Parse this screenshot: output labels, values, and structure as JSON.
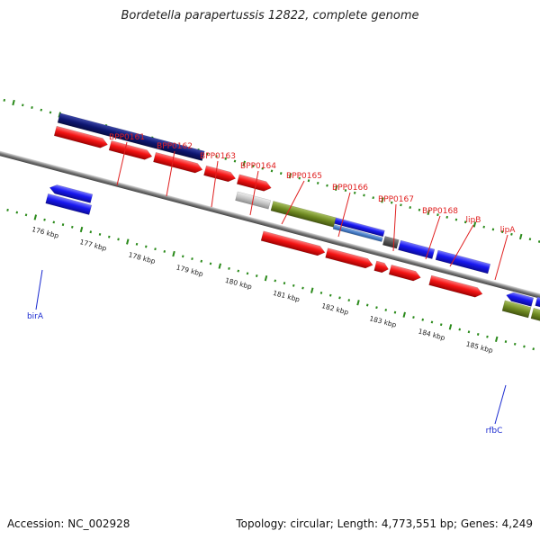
{
  "title": "Bordetella parapertussis 12822, complete genome",
  "footer": {
    "accession": "Accession: NC_002928",
    "summary": "Topology: circular; Length: 4,773,551 bp; Genes: 4,249"
  },
  "colors": {
    "backbone": "#7a7a7a",
    "tick": "#2a8a1a",
    "label_top": "#e02020",
    "label_bottom": "#1a2ad0",
    "navy": "#0d1670",
    "red": "#f41414",
    "blue": "#1818f0",
    "olive": "#6f8a22",
    "silver": "#c4c4c4",
    "dark_gray": "#555555",
    "steel": "#4a7ec8"
  },
  "kbp_labels": [
    "176 kbp",
    "177 kbp",
    "178 kbp",
    "179 kbp",
    "180 kbp",
    "181 kbp",
    "182 kbp",
    "183 kbp",
    "184 kbp",
    "185 kbp"
  ],
  "gene_labels_top": [
    "BPP0161",
    "BPP0162",
    "BPP0163",
    "BPP0164",
    "BPP0165",
    "BPP0166",
    "BPP0167",
    "BPP0168",
    "lipB",
    "lipA"
  ],
  "gene_labels_bottom": [
    "birA",
    "rfbC"
  ]
}
